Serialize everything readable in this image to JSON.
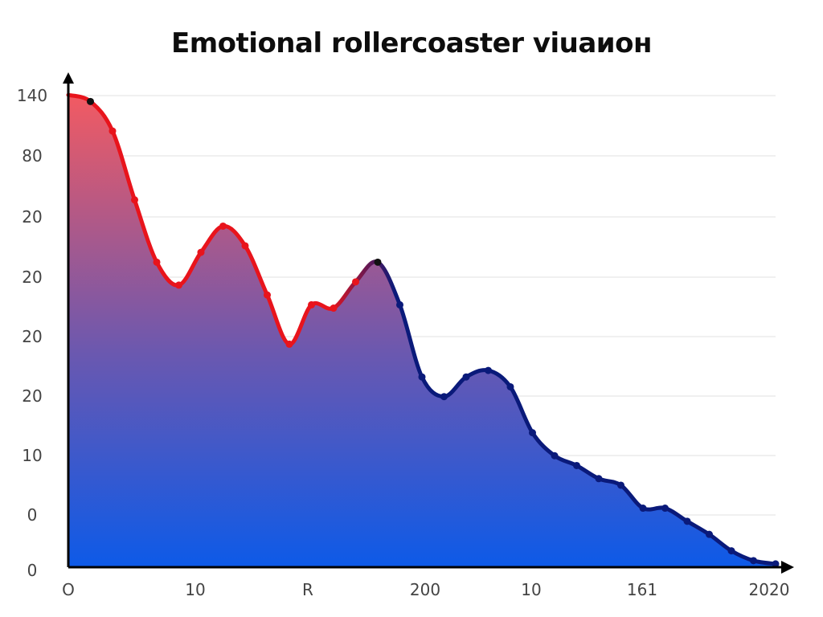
{
  "chart_data": {
    "type": "area",
    "title": "Emotional rollercoaster viuaион",
    "y_tick_labels": [
      "140",
      "80",
      "20",
      "20",
      "20",
      "20",
      "10",
      "0",
      "0"
    ],
    "x_tick_labels": [
      "O",
      "10",
      "R",
      "200",
      "10",
      "161",
      "2020"
    ],
    "grid": true,
    "legend": "none",
    "series": [
      {
        "values": [
          144,
          142,
          133,
          112,
          93,
          86,
          96,
          104,
          98,
          83,
          68,
          80,
          79,
          87,
          93,
          80,
          58,
          52,
          58,
          60,
          55,
          41,
          34,
          31,
          27,
          25,
          18,
          18,
          14,
          10,
          5,
          2,
          1
        ],
        "color_start": "#e8141c",
        "color_end": "#0a1a7a"
      }
    ],
    "area_gradient": {
      "top": "#f25a62",
      "bottom": "#0d5ae8"
    },
    "colors": {
      "grid": "#e6e6e6",
      "axis": "#000000",
      "point": "#111111"
    }
  },
  "title": "Emotional rollercoaster viuaион"
}
